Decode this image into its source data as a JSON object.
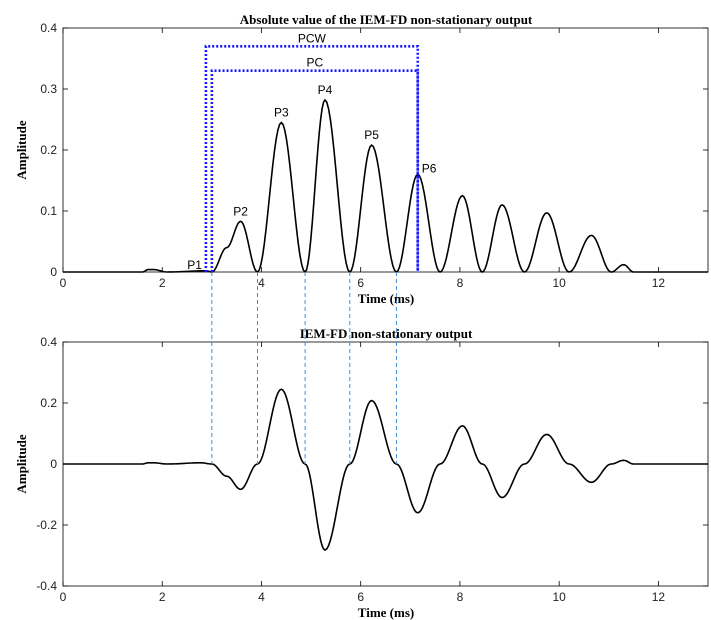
{
  "chart_data": [
    {
      "type": "line",
      "title": "Absolute value of the IEM-FD non-stationary output",
      "xlabel": "Time (ms)",
      "ylabel": "Amplitude",
      "xlim": [
        0,
        13
      ],
      "ylim": [
        0,
        0.4
      ],
      "xticks": [
        "0",
        "2",
        "4",
        "6",
        "8",
        "10",
        "12"
      ],
      "yticks": [
        "0",
        "0.1",
        "0.2",
        "0.3",
        "0.4"
      ],
      "grid": false,
      "series": [
        {
          "style": "solid",
          "color": "#000000",
          "x": [
            0,
            1.6,
            1.72,
            1.82,
            2.1,
            2.88,
            3.0,
            3.3,
            3.58,
            3.92,
            4.4,
            4.88,
            5.28,
            5.78,
            6.22,
            6.72,
            7.15,
            7.6,
            8.05,
            8.45,
            8.85,
            9.3,
            9.75,
            10.2,
            10.65,
            11.05,
            11.3,
            11.5,
            13
          ],
          "y": [
            0,
            0,
            0.004,
            0.004,
            0,
            0.002,
            0,
            0.04,
            0.083,
            0,
            0.245,
            0,
            0.282,
            0,
            0.208,
            0,
            0.16,
            0,
            0.125,
            0,
            0.11,
            0,
            0.097,
            0,
            0.06,
            0,
            0.012,
            0,
            0
          ]
        }
      ],
      "annotations": [
        {
          "text": "P1",
          "x": 2.88,
          "y": 0.002
        },
        {
          "text": "P2",
          "x": 3.58,
          "y": 0.083
        },
        {
          "text": "P3",
          "x": 4.4,
          "y": 0.245
        },
        {
          "text": "P4",
          "x": 5.28,
          "y": 0.282
        },
        {
          "text": "P5",
          "x": 6.22,
          "y": 0.208
        },
        {
          "text": "P6",
          "x": 7.15,
          "y": 0.16
        }
      ],
      "brackets": [
        {
          "text": "PCW",
          "x_start": 2.88,
          "x_end": 7.15,
          "y": 0.37,
          "color": "#1a1aff",
          "style": "dotted"
        },
        {
          "text": "PC",
          "x_start": 3.0,
          "x_end": 7.15,
          "y": 0.33,
          "color": "#1a1aff",
          "style": "dotted"
        }
      ]
    },
    {
      "type": "line",
      "title": "IEM-FD non-stationary output",
      "xlabel": "Time (ms)",
      "ylabel": "Amplitude",
      "xlim": [
        0,
        13
      ],
      "ylim": [
        -0.4,
        0.4
      ],
      "xticks": [
        "0",
        "2",
        "4",
        "6",
        "8",
        "10",
        "12"
      ],
      "yticks": [
        "-0.4",
        "-0.2",
        "0",
        "0.2",
        "0.4"
      ],
      "grid": false,
      "series": [
        {
          "style": "solid",
          "color": "#000000",
          "x": [
            0,
            1.6,
            1.72,
            1.82,
            2.1,
            2.78,
            3.0,
            3.3,
            3.58,
            3.92,
            4.4,
            4.88,
            5.28,
            5.78,
            6.22,
            6.72,
            7.15,
            7.6,
            8.05,
            8.45,
            8.85,
            9.3,
            9.75,
            10.2,
            10.65,
            11.05,
            11.3,
            11.5,
            13
          ],
          "y": [
            0,
            0,
            0.004,
            0.004,
            0,
            0.004,
            0,
            -0.04,
            -0.083,
            0,
            0.245,
            0,
            -0.282,
            0,
            0.208,
            0,
            -0.16,
            0,
            0.125,
            0,
            -0.11,
            0,
            0.097,
            0,
            -0.06,
            0,
            0.012,
            0,
            0
          ]
        }
      ]
    }
  ],
  "guides": {
    "x_values": [
      3.0,
      3.92,
      4.88,
      5.78,
      6.72
    ],
    "color": "#3d8fd6"
  }
}
